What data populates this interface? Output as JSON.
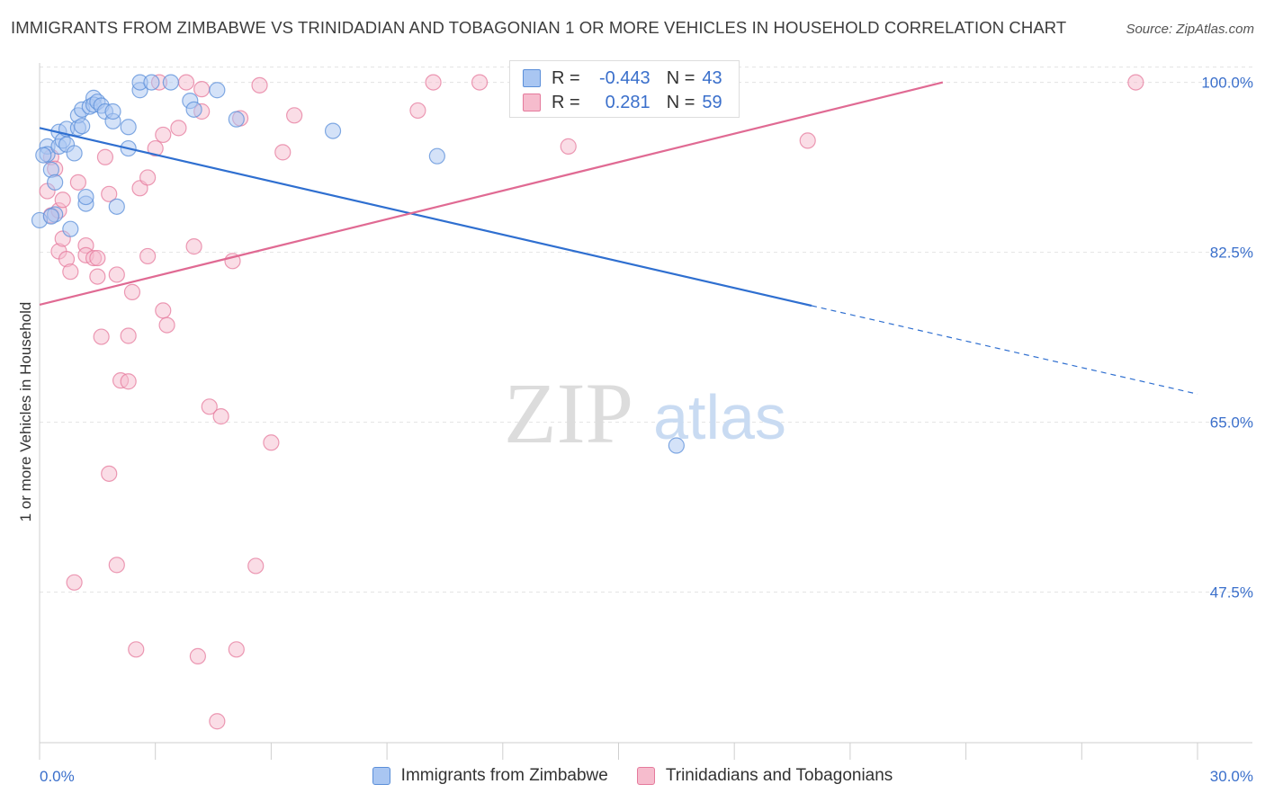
{
  "title": "IMMIGRANTS FROM ZIMBABWE VS TRINIDADIAN AND TOBAGONIAN 1 OR MORE VEHICLES IN HOUSEHOLD CORRELATION CHART",
  "source": "Source: ZipAtlas.com",
  "watermark": {
    "zip": "ZIP",
    "atlas": "atlas"
  },
  "legend_top": {
    "rows": [
      {
        "r_label": "R =",
        "r_value": "-0.443",
        "n_label": "N =",
        "n_value": "43"
      },
      {
        "r_label": "R =",
        "r_value": "0.281",
        "n_label": "N =",
        "n_value": "59"
      }
    ]
  },
  "colors": {
    "blue_fill": "#a9c6f2",
    "blue_stroke": "#5b8fd9",
    "blue_line": "#2f6fd0",
    "pink_fill": "#f6bccd",
    "pink_stroke": "#e57a9c",
    "pink_line": "#e06a93",
    "tick_label": "#3a6fcb",
    "grid": "#e3e3e3"
  },
  "chart_data": {
    "type": "scatter",
    "title": "IMMIGRANTS FROM ZIMBABWE VS TRINIDADIAN AND TOBAGONIAN 1 OR MORE VEHICLES IN HOUSEHOLD CORRELATION CHART",
    "xlabel": "",
    "ylabel": "1 or more Vehicles in Household",
    "xlim": [
      0,
      30
    ],
    "ylim": [
      32,
      102
    ],
    "x_tick_labels": [
      "0.0%",
      "30.0%"
    ],
    "y_ticks": [
      {
        "value": 100.0,
        "label": "100.0%"
      },
      {
        "value": 82.5,
        "label": "82.5%"
      },
      {
        "value": 65.0,
        "label": "65.0%"
      },
      {
        "value": 47.5,
        "label": "47.5%"
      }
    ],
    "grid": true,
    "series": [
      {
        "name": "Immigrants from Zimbabwe",
        "color": "blue",
        "r": -0.443,
        "n": 43,
        "trend": {
          "x_start": 0.0,
          "y_start": 95.3,
          "x_end": 20.0,
          "y_end": 77.0,
          "dash_to_x": 30.0,
          "dash_to_y": 67.9
        },
        "points": [
          [
            0.0,
            85.8
          ],
          [
            0.2,
            93.4
          ],
          [
            0.2,
            92.6
          ],
          [
            0.3,
            91.0
          ],
          [
            0.4,
            89.7
          ],
          [
            0.4,
            86.4
          ],
          [
            0.5,
            94.9
          ],
          [
            0.5,
            93.4
          ],
          [
            0.6,
            94.0
          ],
          [
            0.7,
            93.6
          ],
          [
            0.7,
            95.2
          ],
          [
            0.8,
            84.9
          ],
          [
            0.9,
            92.7
          ],
          [
            1.0,
            95.3
          ],
          [
            1.0,
            96.6
          ],
          [
            1.1,
            95.5
          ],
          [
            1.1,
            97.2
          ],
          [
            1.2,
            87.5
          ],
          [
            1.2,
            88.2
          ],
          [
            1.3,
            97.5
          ],
          [
            1.4,
            98.4
          ],
          [
            1.4,
            97.7
          ],
          [
            1.5,
            98.0
          ],
          [
            1.6,
            97.6
          ],
          [
            1.7,
            97.0
          ],
          [
            1.9,
            96.0
          ],
          [
            2.0,
            87.2
          ],
          [
            2.3,
            95.4
          ],
          [
            2.3,
            93.2
          ],
          [
            2.6,
            99.2
          ],
          [
            2.6,
            100.0
          ],
          [
            2.9,
            100.0
          ],
          [
            3.4,
            100.0
          ],
          [
            3.9,
            98.1
          ],
          [
            4.0,
            97.2
          ],
          [
            4.6,
            99.2
          ],
          [
            5.1,
            96.2
          ],
          [
            7.6,
            95.0
          ],
          [
            10.3,
            92.4
          ],
          [
            16.5,
            62.6
          ],
          [
            0.1,
            92.5
          ],
          [
            0.3,
            86.2
          ],
          [
            1.9,
            97.0
          ]
        ]
      },
      {
        "name": "Trinidadians and Tobagonians",
        "color": "pink",
        "r": 0.281,
        "n": 59,
        "trend": {
          "x_start": 0.0,
          "y_start": 77.1,
          "x_end": 23.4,
          "y_end": 100.0
        },
        "points": [
          [
            0.2,
            88.8
          ],
          [
            0.3,
            92.3
          ],
          [
            0.3,
            86.3
          ],
          [
            0.4,
            91.1
          ],
          [
            0.5,
            86.8
          ],
          [
            0.5,
            82.6
          ],
          [
            0.6,
            87.9
          ],
          [
            0.6,
            83.9
          ],
          [
            0.7,
            81.8
          ],
          [
            0.8,
            80.5
          ],
          [
            0.9,
            48.5
          ],
          [
            1.0,
            89.7
          ],
          [
            1.2,
            83.2
          ],
          [
            1.2,
            82.2
          ],
          [
            1.4,
            81.9
          ],
          [
            1.5,
            81.9
          ],
          [
            1.5,
            80.0
          ],
          [
            1.6,
            73.8
          ],
          [
            1.7,
            92.3
          ],
          [
            1.8,
            88.5
          ],
          [
            1.8,
            59.7
          ],
          [
            2.0,
            80.2
          ],
          [
            2.0,
            50.3
          ],
          [
            2.1,
            69.3
          ],
          [
            2.3,
            73.9
          ],
          [
            2.3,
            69.2
          ],
          [
            2.4,
            78.4
          ],
          [
            2.5,
            41.6
          ],
          [
            2.6,
            89.1
          ],
          [
            2.8,
            90.2
          ],
          [
            2.8,
            82.1
          ],
          [
            3.0,
            93.2
          ],
          [
            3.1,
            100.0
          ],
          [
            3.2,
            94.6
          ],
          [
            3.2,
            76.5
          ],
          [
            3.3,
            75.0
          ],
          [
            3.6,
            95.3
          ],
          [
            3.8,
            100.0
          ],
          [
            4.0,
            83.1
          ],
          [
            4.1,
            40.9
          ],
          [
            4.2,
            97.0
          ],
          [
            4.2,
            99.3
          ],
          [
            4.4,
            66.6
          ],
          [
            4.6,
            34.2
          ],
          [
            4.7,
            65.6
          ],
          [
            5.0,
            81.6
          ],
          [
            5.1,
            41.6
          ],
          [
            5.2,
            96.3
          ],
          [
            5.6,
            50.2
          ],
          [
            5.7,
            99.7
          ],
          [
            6.0,
            62.9
          ],
          [
            6.3,
            92.8
          ],
          [
            6.6,
            96.6
          ],
          [
            9.8,
            97.1
          ],
          [
            10.2,
            100.0
          ],
          [
            11.4,
            100.0
          ],
          [
            13.7,
            93.4
          ],
          [
            19.9,
            94.0
          ],
          [
            28.4,
            100.0
          ]
        ]
      }
    ]
  },
  "bottom_legend": [
    {
      "label": "Immigrants from Zimbabwe"
    },
    {
      "label": "Trinidadians and Tobagonians"
    }
  ]
}
